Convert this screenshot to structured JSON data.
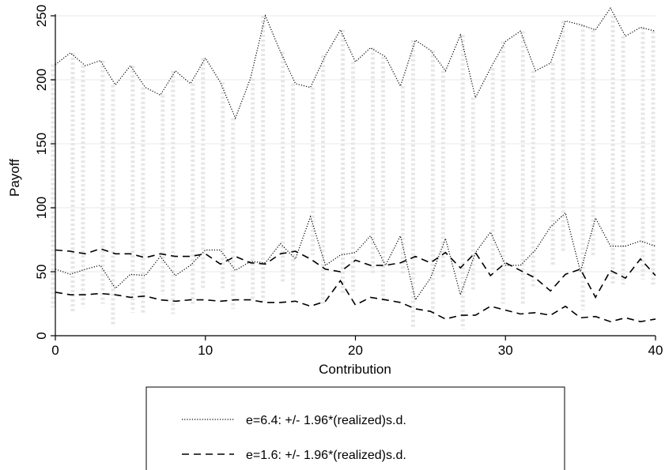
{
  "chart_data": {
    "type": "line",
    "xlabel": "Contribution",
    "ylabel": "Payoff",
    "xlim": [
      0,
      40
    ],
    "ylim": [
      0,
      250
    ],
    "xticks": [
      0,
      10,
      20,
      30,
      40
    ],
    "yticks": [
      0,
      50,
      100,
      150,
      200,
      250
    ],
    "grid": "horizontal",
    "legend_position": "bottom",
    "x": [
      0,
      1,
      2,
      3,
      4,
      5,
      6,
      7,
      8,
      9,
      10,
      11,
      12,
      13,
      14,
      15,
      16,
      17,
      18,
      19,
      20,
      21,
      22,
      23,
      24,
      25,
      26,
      27,
      28,
      29,
      30,
      31,
      32,
      33,
      34,
      35,
      36,
      37,
      38,
      39,
      40
    ],
    "series": [
      {
        "name": "e=6.4: +/- 1.96*(realized)s.d.",
        "style": "dotted",
        "color": "#000000",
        "upper": [
          212,
          221,
          211,
          215,
          196,
          211,
          194,
          188,
          207,
          197,
          217,
          198,
          170,
          201,
          250,
          222,
          197,
          194,
          219,
          239,
          214,
          225,
          218,
          195,
          231,
          223,
          207,
          235,
          186,
          209,
          230,
          238,
          207,
          213,
          246,
          243,
          239,
          256,
          234,
          241,
          238
        ],
        "lower": [
          52,
          48,
          52,
          55,
          37,
          48,
          47,
          62,
          47,
          55,
          67,
          67,
          51,
          58,
          57,
          72,
          60,
          93,
          55,
          63,
          65,
          78,
          55,
          78,
          28,
          45,
          76,
          32,
          65,
          81,
          55,
          55,
          67,
          85,
          96,
          50,
          92,
          70,
          70,
          74,
          70
        ]
      },
      {
        "name": "e=1.6: +/- 1.96*(realized)s.d.",
        "style": "dashed",
        "color": "#000000",
        "upper": [
          67,
          66,
          64,
          68,
          64,
          64,
          61,
          64,
          62,
          62,
          64,
          56,
          62,
          57,
          56,
          64,
          66,
          60,
          52,
          50,
          59,
          55,
          55,
          57,
          62,
          57,
          65,
          53,
          65,
          47,
          57,
          51,
          45,
          35,
          48,
          52,
          30,
          51,
          45,
          60,
          47
        ],
        "lower": [
          34,
          32,
          32,
          33,
          32,
          30,
          31,
          28,
          27,
          28,
          28,
          27,
          28,
          28,
          26,
          26,
          27,
          23,
          27,
          43,
          24,
          30,
          28,
          26,
          21,
          19,
          13,
          16,
          16,
          23,
          20,
          17,
          18,
          16,
          23,
          14,
          15,
          11,
          14,
          11,
          13
        ]
      }
    ],
    "scatter_color": "#e6e6e6"
  }
}
